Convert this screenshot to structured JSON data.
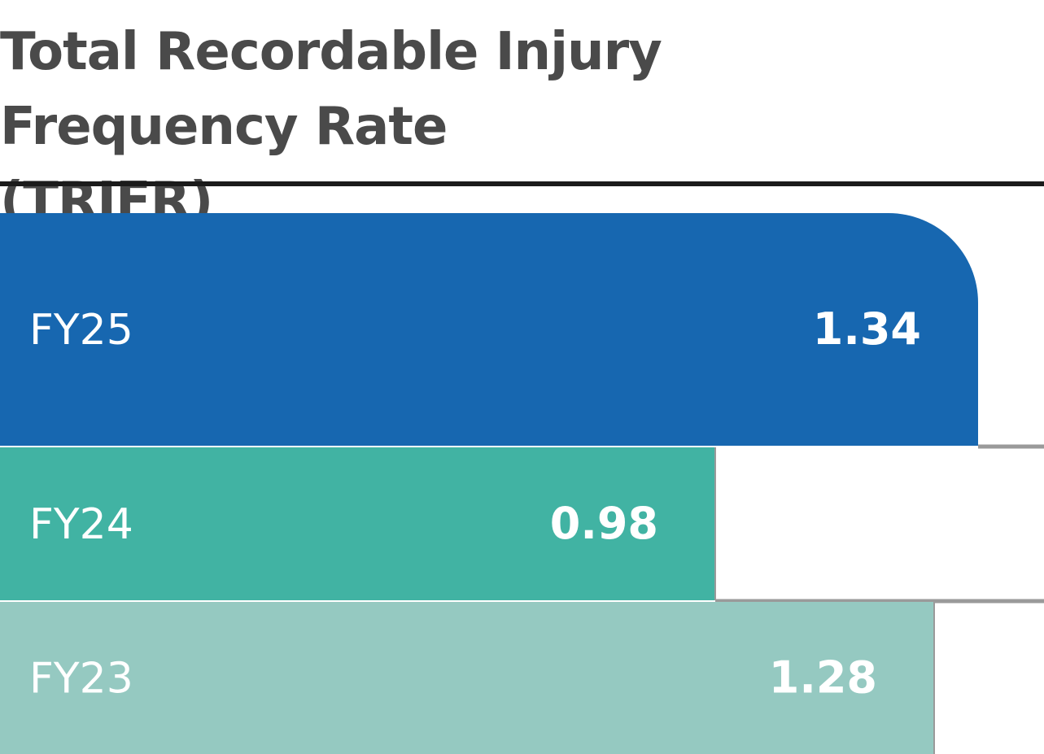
{
  "chart_data": {
    "type": "bar",
    "orientation": "horizontal",
    "title": "Total Recordable Injury Frequency Rate (TRIFR)",
    "categories": [
      "FY25",
      "FY24",
      "FY23"
    ],
    "values": [
      1.34,
      0.98,
      1.28
    ],
    "value_labels": [
      "1.34",
      "0.98",
      "1.28"
    ],
    "colors": [
      "#1767B0",
      "#41B3A3",
      "#95C9C1"
    ],
    "xlim": [
      0,
      1.43
    ],
    "grid": false,
    "legend": "none"
  },
  "colors": {
    "title": "#4a4a4a",
    "rule": "#1b1b1b",
    "separator": "#9a9a9a",
    "label": "#ffffff"
  }
}
